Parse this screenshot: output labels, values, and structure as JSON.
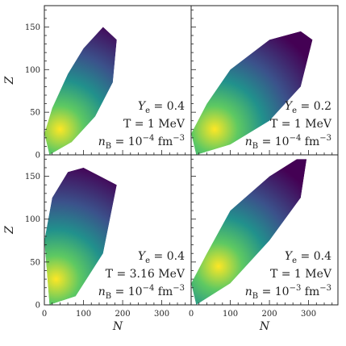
{
  "chart_data": [
    {
      "type": "heatmap",
      "panel": "top-left",
      "xlim": [
        0,
        375
      ],
      "ylim": [
        0,
        175
      ],
      "xticks": [],
      "yticks": [
        0,
        50,
        100,
        150
      ],
      "ylabel": "Z",
      "xlabel": "",
      "region": {
        "orientation": "band",
        "lower_edge": [
          [
            13,
            0
          ],
          [
            70,
            15
          ],
          [
            130,
            45
          ],
          [
            175,
            85
          ],
          [
            185,
            135
          ]
        ],
        "upper_edge": [
          [
            0,
            25
          ],
          [
            20,
            55
          ],
          [
            60,
            95
          ],
          [
            100,
            125
          ],
          [
            150,
            150
          ],
          [
            185,
            135
          ]
        ],
        "peak": [
          40,
          30
        ],
        "scatter_along": [
          200,
          18
        ]
      },
      "annotation": [
        {
          "prefix": "Y",
          "sub": "e",
          "suffix": " = 0.4"
        },
        {
          "prefix": "T = 1 MeV"
        },
        {
          "prefix": "n",
          "sub": "B",
          "suffix": " = 10",
          "sup": "−4",
          "tail": " fm",
          "sup2": "−3"
        }
      ]
    },
    {
      "type": "heatmap",
      "panel": "top-right",
      "xlim": [
        0,
        375
      ],
      "ylim": [
        0,
        175
      ],
      "xticks": [],
      "yticks": [],
      "ylabel": "",
      "xlabel": "",
      "region": {
        "lower_edge": [
          [
            13,
            0
          ],
          [
            100,
            12
          ],
          [
            200,
            40
          ],
          [
            280,
            80
          ],
          [
            310,
            135
          ]
        ],
        "upper_edge": [
          [
            0,
            25
          ],
          [
            40,
            60
          ],
          [
            100,
            100
          ],
          [
            200,
            135
          ],
          [
            280,
            145
          ],
          [
            310,
            135
          ]
        ],
        "peak": [
          60,
          30
        ],
        "scatter_along": [
          300,
          18
        ]
      },
      "annotation": [
        {
          "prefix": "Y",
          "sub": "e",
          "suffix": " = 0.2"
        },
        {
          "prefix": "T = 1 MeV"
        },
        {
          "prefix": "n",
          "sub": "B",
          "suffix": " = 10",
          "sup": "−4",
          "tail": " fm",
          "sup2": "−3"
        }
      ]
    },
    {
      "type": "heatmap",
      "panel": "bottom-left",
      "xlim": [
        0,
        375
      ],
      "ylim": [
        0,
        175
      ],
      "xticks": [
        0,
        100,
        200,
        300
      ],
      "yticks": [
        0,
        50,
        100,
        150
      ],
      "ylabel": "Z",
      "xlabel": "N",
      "region": {
        "lower_edge": [
          [
            13,
            0
          ],
          [
            80,
            10
          ],
          [
            150,
            60
          ],
          [
            185,
            140
          ]
        ],
        "upper_edge": [
          [
            0,
            75
          ],
          [
            20,
            125
          ],
          [
            60,
            155
          ],
          [
            100,
            160
          ],
          [
            185,
            140
          ]
        ],
        "peak": [
          30,
          30
        ],
        "scatter_along": [
          180,
          14
        ]
      },
      "annotation": [
        {
          "prefix": "Y",
          "sub": "e",
          "suffix": " = 0.4"
        },
        {
          "prefix": "T = 3.16 MeV"
        },
        {
          "prefix": "n",
          "sub": "B",
          "suffix": " = 10",
          "sup": "−4",
          "tail": " fm",
          "sup2": "−3"
        }
      ]
    },
    {
      "type": "heatmap",
      "panel": "bottom-right",
      "xlim": [
        0,
        375
      ],
      "ylim": [
        0,
        175
      ],
      "xticks": [
        0,
        100,
        200,
        300
      ],
      "yticks": [],
      "ylabel": "",
      "xlabel": "N",
      "region": {
        "lower_edge": [
          [
            13,
            0
          ],
          [
            100,
            25
          ],
          [
            200,
            75
          ],
          [
            280,
            125
          ],
          [
            295,
            170
          ]
        ],
        "upper_edge": [
          [
            0,
            25
          ],
          [
            40,
            60
          ],
          [
            100,
            110
          ],
          [
            200,
            150
          ],
          [
            270,
            170
          ],
          [
            295,
            170
          ]
        ],
        "peak": [
          70,
          45
        ],
        "scatter_along": [
          300,
          20
        ]
      },
      "annotation": [
        {
          "prefix": "Y",
          "sub": "e",
          "suffix": " = 0.4"
        },
        {
          "prefix": "T = 1 MeV"
        },
        {
          "prefix": "n",
          "sub": "B",
          "suffix": " = 10",
          "sup": "−3",
          "tail": " fm",
          "sup2": "−3"
        }
      ]
    }
  ],
  "colors": {
    "colormap": [
      "#440154",
      "#3b528b",
      "#21918c",
      "#5ec962",
      "#fde725"
    ],
    "axes": "#222222"
  }
}
